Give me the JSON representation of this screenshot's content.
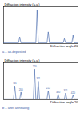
{
  "chart_data": [
    {
      "type": "line",
      "y_label": "Diffraction intensity (a.u.)",
      "x_label": "Diffraction angle 2θ",
      "caption": "a – as-deposited",
      "color": "#3a5fa8",
      "x": [
        20,
        32,
        33,
        34,
        46,
        47,
        48,
        55,
        56,
        57,
        68,
        69,
        70,
        75,
        76,
        77,
        80
      ],
      "values": [
        2,
        2,
        20,
        2,
        2,
        100,
        2,
        2,
        35,
        2,
        2,
        15,
        2,
        2,
        25,
        2,
        2
      ],
      "xlim": [
        20,
        80
      ],
      "ylim": [
        0,
        110
      ],
      "xticks": [],
      "yticks": [],
      "tick_labels": false,
      "annotations": []
    },
    {
      "type": "line",
      "y_label": "Diffraction intensity (a.u.)",
      "x_label": "Diffraction angle 2θ",
      "caption": "b – after annealing",
      "color": "#3a5fa8",
      "x": [
        20,
        28,
        29,
        30,
        33,
        34,
        35,
        44,
        45,
        46,
        47,
        48,
        49,
        55,
        56,
        57,
        63,
        64,
        65,
        69,
        70,
        71,
        75,
        76,
        77,
        80
      ],
      "values": [
        3,
        3,
        45,
        3,
        3,
        25,
        3,
        3,
        100,
        3,
        3,
        60,
        3,
        3,
        30,
        3,
        3,
        18,
        3,
        3,
        22,
        3,
        3,
        15,
        3,
        3
      ],
      "xlim": [
        20,
        80
      ],
      "ylim": [
        0,
        120
      ],
      "xticks": [],
      "yticks": [],
      "tick_labels": false,
      "annotations": [
        {
          "x": 29,
          "y": 45,
          "text": "111"
        },
        {
          "x": 34,
          "y": 25,
          "text": "200"
        },
        {
          "x": 45,
          "y": 100,
          "text": "220"
        },
        {
          "x": 48,
          "y": 60,
          "text": "311"
        },
        {
          "x": 56,
          "y": 30,
          "text": "222"
        },
        {
          "x": 64,
          "y": 18,
          "text": "400"
        },
        {
          "x": 70,
          "y": 22,
          "text": "331"
        },
        {
          "x": 76,
          "y": 15,
          "text": "420"
        }
      ]
    }
  ]
}
